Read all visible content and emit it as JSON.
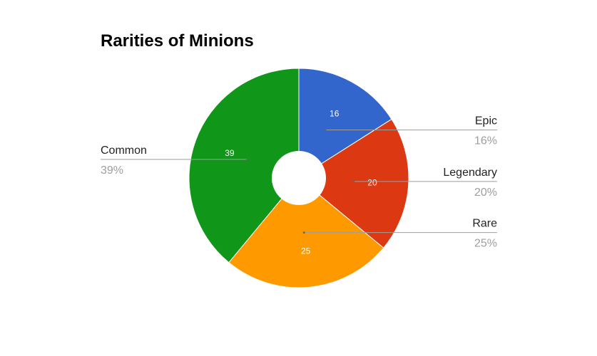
{
  "chart_data": {
    "type": "pie",
    "title": "Rarities of Minions",
    "donut": true,
    "start_angle_deg": 0,
    "direction": "clockwise",
    "legend_position": "labeled-leaders",
    "slices": [
      {
        "name": "Epic",
        "value": 16,
        "percent_label": "16%",
        "color": "#3366cc"
      },
      {
        "name": "Legendary",
        "value": 20,
        "percent_label": "20%",
        "color": "#dc3912"
      },
      {
        "name": "Rare",
        "value": 25,
        "percent_label": "25%",
        "color": "#ff9900"
      },
      {
        "name": "Common",
        "value": 39,
        "percent_label": "39%",
        "color": "#109618"
      }
    ]
  }
}
